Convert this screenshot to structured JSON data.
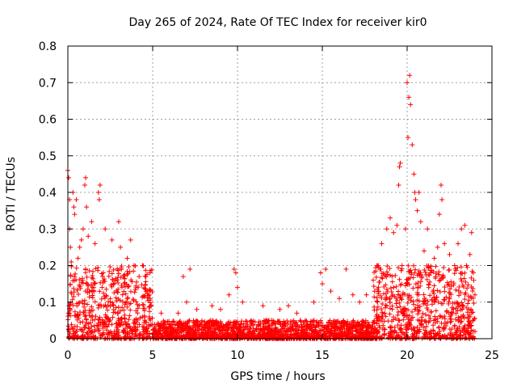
{
  "chart_data": {
    "type": "scatter",
    "title": "Day 265 of 2024, Rate Of TEC Index for receiver kir0",
    "xlabel": "GPS time / hours",
    "ylabel": "ROTI / TECUs",
    "xlim": [
      0,
      25
    ],
    "ylim": [
      0,
      0.8
    ],
    "x_ticks": [
      "0",
      "5",
      "10",
      "15",
      "20",
      "25"
    ],
    "y_ticks": [
      "0",
      "0.1",
      "0.2",
      "0.3",
      "0.4",
      "0.5",
      "0.6",
      "0.7",
      "0.8"
    ],
    "grid": true,
    "marker": "+",
    "color": "#ff0000",
    "series": [
      {
        "name": "ROTI",
        "points": [
          [
            0.0,
            0.46
          ],
          [
            0.05,
            0.44
          ],
          [
            0.1,
            0.38
          ],
          [
            0.1,
            0.3
          ],
          [
            0.15,
            0.25
          ],
          [
            0.2,
            0.21
          ],
          [
            0.3,
            0.4
          ],
          [
            0.35,
            0.36
          ],
          [
            0.4,
            0.34
          ],
          [
            0.5,
            0.38
          ],
          [
            0.6,
            0.22
          ],
          [
            0.7,
            0.25
          ],
          [
            0.8,
            0.27
          ],
          [
            0.9,
            0.3
          ],
          [
            1.0,
            0.42
          ],
          [
            1.05,
            0.44
          ],
          [
            1.1,
            0.36
          ],
          [
            1.2,
            0.28
          ],
          [
            1.4,
            0.32
          ],
          [
            1.6,
            0.26
          ],
          [
            1.8,
            0.4
          ],
          [
            1.85,
            0.38
          ],
          [
            1.9,
            0.42
          ],
          [
            2.2,
            0.3
          ],
          [
            2.6,
            0.27
          ],
          [
            3.0,
            0.32
          ],
          [
            3.1,
            0.25
          ],
          [
            3.5,
            0.22
          ],
          [
            3.7,
            0.27
          ],
          [
            3.9,
            0.2
          ],
          [
            4.2,
            0.17
          ],
          [
            4.4,
            0.2
          ],
          [
            4.6,
            0.17
          ],
          [
            4.8,
            0.12
          ],
          [
            5.5,
            0.07
          ],
          [
            6.5,
            0.07
          ],
          [
            6.8,
            0.17
          ],
          [
            7.0,
            0.1
          ],
          [
            7.2,
            0.19
          ],
          [
            7.6,
            0.08
          ],
          [
            8.5,
            0.09
          ],
          [
            9.0,
            0.08
          ],
          [
            9.5,
            0.12
          ],
          [
            9.8,
            0.19
          ],
          [
            9.9,
            0.18
          ],
          [
            10.0,
            0.14
          ],
          [
            10.3,
            0.1
          ],
          [
            11.5,
            0.09
          ],
          [
            12.0,
            0.05
          ],
          [
            12.5,
            0.08
          ],
          [
            13.0,
            0.09
          ],
          [
            13.5,
            0.07
          ],
          [
            14.0,
            0.05
          ],
          [
            14.5,
            0.1
          ],
          [
            14.9,
            0.18
          ],
          [
            15.0,
            0.15
          ],
          [
            15.2,
            0.19
          ],
          [
            15.5,
            0.13
          ],
          [
            16.0,
            0.11
          ],
          [
            16.4,
            0.19
          ],
          [
            16.8,
            0.12
          ],
          [
            17.2,
            0.1
          ],
          [
            17.6,
            0.12
          ],
          [
            18.0,
            0.16
          ],
          [
            18.3,
            0.2
          ],
          [
            18.5,
            0.26
          ],
          [
            18.8,
            0.3
          ],
          [
            19.0,
            0.33
          ],
          [
            19.2,
            0.29
          ],
          [
            19.4,
            0.31
          ],
          [
            19.5,
            0.42
          ],
          [
            19.55,
            0.47
          ],
          [
            19.6,
            0.48
          ],
          [
            19.7,
            0.2
          ],
          [
            19.9,
            0.3
          ],
          [
            20.0,
            0.7
          ],
          [
            20.05,
            0.55
          ],
          [
            20.1,
            0.66
          ],
          [
            20.15,
            0.72
          ],
          [
            20.2,
            0.64
          ],
          [
            20.3,
            0.53
          ],
          [
            20.4,
            0.45
          ],
          [
            20.45,
            0.4
          ],
          [
            20.5,
            0.38
          ],
          [
            20.6,
            0.35
          ],
          [
            20.7,
            0.4
          ],
          [
            20.8,
            0.32
          ],
          [
            21.0,
            0.24
          ],
          [
            21.2,
            0.3
          ],
          [
            21.4,
            0.18
          ],
          [
            21.6,
            0.22
          ],
          [
            21.8,
            0.25
          ],
          [
            21.9,
            0.34
          ],
          [
            22.0,
            0.42
          ],
          [
            22.05,
            0.38
          ],
          [
            22.2,
            0.26
          ],
          [
            22.5,
            0.23
          ],
          [
            22.8,
            0.2
          ],
          [
            23.0,
            0.26
          ],
          [
            23.2,
            0.3
          ],
          [
            23.4,
            0.31
          ],
          [
            23.5,
            0.2
          ],
          [
            23.7,
            0.23
          ],
          [
            23.8,
            0.29
          ],
          [
            23.9,
            0.18
          ],
          [
            24.0,
            0.12
          ],
          [
            24.0,
            0.02
          ]
        ],
        "background_bands": [
          {
            "x": [
              0,
              5
            ],
            "y": [
              0,
              0.2
            ]
          },
          {
            "x": [
              5,
              18
            ],
            "y": [
              0,
              0.05
            ]
          },
          {
            "x": [
              18,
              24
            ],
            "y": [
              0,
              0.2
            ]
          }
        ]
      }
    ]
  }
}
